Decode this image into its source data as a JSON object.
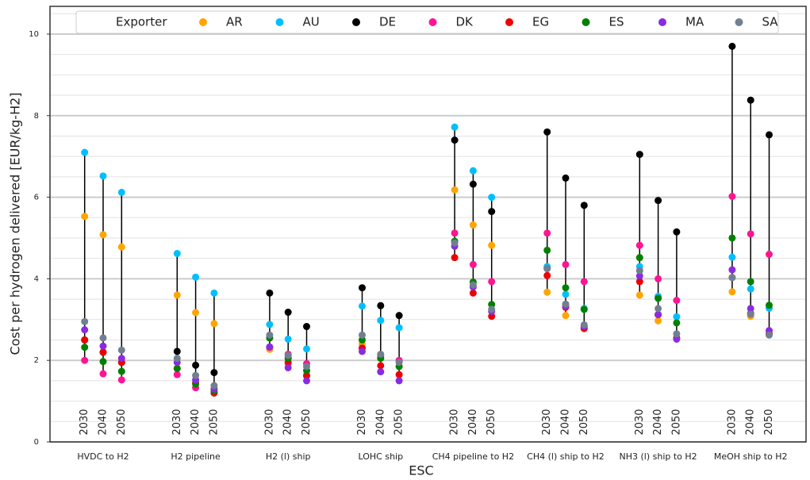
{
  "chart_data": {
    "type": "dot_range",
    "x_label": "ESC",
    "y_label": "Cost per hydrogen delivered [EUR/kg-H2]",
    "legend_title": "Exporter",
    "legend_position": "top",
    "categories": [
      "HVDC to H2",
      "H2 pipeline",
      "H2 (l) ship",
      "LOHC ship",
      "CH4 pipeline to H2",
      "CH4 (l) ship to H2",
      "NH3 (l) ship to H2",
      "MeOH ship to H2"
    ],
    "years": [
      "2030",
      "2040",
      "2050"
    ],
    "ylim": [
      0,
      10.68
    ],
    "yticks": [
      0,
      2,
      4,
      6,
      8,
      10
    ],
    "minor_yticks": [
      0.5,
      1,
      1.5,
      2.5,
      3,
      3.5,
      4.5,
      5,
      5.5,
      6.5,
      7,
      7.5,
      8.5,
      9,
      9.5,
      10.5
    ],
    "grid": true,
    "range_line_color": "#000000",
    "series": [
      {
        "name": "AR",
        "color": "#ffa500",
        "values": [
          [
            5.53,
            5.08,
            4.78
          ],
          [
            3.6,
            3.17,
            2.9
          ],
          [
            2.27,
            1.9,
            1.65
          ],
          [
            2.4,
            2.05,
            1.85
          ],
          [
            6.18,
            5.32,
            4.82
          ],
          [
            3.67,
            3.1,
            2.82
          ],
          [
            3.6,
            2.97,
            2.55
          ],
          [
            3.68,
            3.08,
            2.65
          ]
        ]
      },
      {
        "name": "AU",
        "color": "#00bfff",
        "values": [
          [
            7.1,
            6.52,
            6.12
          ],
          [
            4.62,
            4.04,
            3.65
          ],
          [
            2.88,
            2.52,
            2.28
          ],
          [
            3.33,
            2.98,
            2.8
          ],
          [
            7.72,
            6.65,
            6.0
          ],
          [
            4.3,
            3.62,
            3.27
          ],
          [
            4.3,
            3.57,
            3.07
          ],
          [
            4.53,
            3.75,
            3.28
          ]
        ]
      },
      {
        "name": "DE",
        "color": "#000000",
        "values": [
          [
            2.5,
            2.2,
            1.95
          ],
          [
            2.22,
            1.88,
            1.7
          ],
          [
            3.65,
            3.18,
            2.83
          ],
          [
            3.78,
            3.34,
            3.1
          ],
          [
            7.4,
            6.32,
            5.65
          ],
          [
            7.6,
            6.47,
            5.8
          ],
          [
            7.05,
            5.92,
            5.15
          ],
          [
            9.7,
            8.38,
            7.53
          ]
        ]
      },
      {
        "name": "DK",
        "color": "#ff1493",
        "values": [
          [
            2.0,
            1.67,
            1.52
          ],
          [
            1.65,
            1.33,
            1.2
          ],
          [
            2.32,
            2.15,
            1.92
          ],
          [
            2.3,
            2.12,
            2.0
          ],
          [
            5.12,
            4.35,
            3.93
          ],
          [
            5.12,
            4.35,
            3.93
          ],
          [
            4.82,
            4.0,
            3.47
          ],
          [
            6.02,
            5.1,
            4.6
          ]
        ]
      },
      {
        "name": "EG",
        "color": "#ee0000",
        "values": [
          [
            2.5,
            2.2,
            1.95
          ],
          [
            1.8,
            1.45,
            1.2
          ],
          [
            2.55,
            1.95,
            1.62
          ],
          [
            2.3,
            1.87,
            1.65
          ],
          [
            4.52,
            3.65,
            3.08
          ],
          [
            4.08,
            3.3,
            2.78
          ],
          [
            3.93,
            3.12,
            2.55
          ],
          [
            4.03,
            3.15,
            2.65
          ]
        ]
      },
      {
        "name": "ES",
        "color": "#008000",
        "values": [
          [
            2.32,
            1.97,
            1.73
          ],
          [
            1.8,
            1.42,
            1.25
          ],
          [
            2.55,
            2.05,
            1.75
          ],
          [
            2.5,
            2.05,
            1.85
          ],
          [
            4.92,
            3.92,
            3.37
          ],
          [
            4.7,
            3.78,
            3.25
          ],
          [
            4.52,
            3.52,
            2.92
          ],
          [
            5.0,
            3.93,
            3.35
          ]
        ]
      },
      {
        "name": "MA",
        "color": "#8a2be2",
        "values": [
          [
            2.75,
            2.35,
            2.05
          ],
          [
            1.95,
            1.52,
            1.3
          ],
          [
            2.33,
            1.82,
            1.5
          ],
          [
            2.22,
            1.72,
            1.5
          ],
          [
            4.8,
            3.8,
            3.2
          ],
          [
            4.25,
            3.33,
            2.83
          ],
          [
            4.07,
            3.12,
            2.52
          ],
          [
            4.22,
            3.27,
            2.73
          ]
        ]
      },
      {
        "name": "SA",
        "color": "#708090",
        "values": [
          [
            2.95,
            2.55,
            2.25
          ],
          [
            2.05,
            1.63,
            1.38
          ],
          [
            2.62,
            2.12,
            1.85
          ],
          [
            2.62,
            2.15,
            1.95
          ],
          [
            4.88,
            3.85,
            3.25
          ],
          [
            4.25,
            3.38,
            2.87
          ],
          [
            4.2,
            3.27,
            2.65
          ],
          [
            4.03,
            3.13,
            2.62
          ]
        ]
      }
    ]
  }
}
